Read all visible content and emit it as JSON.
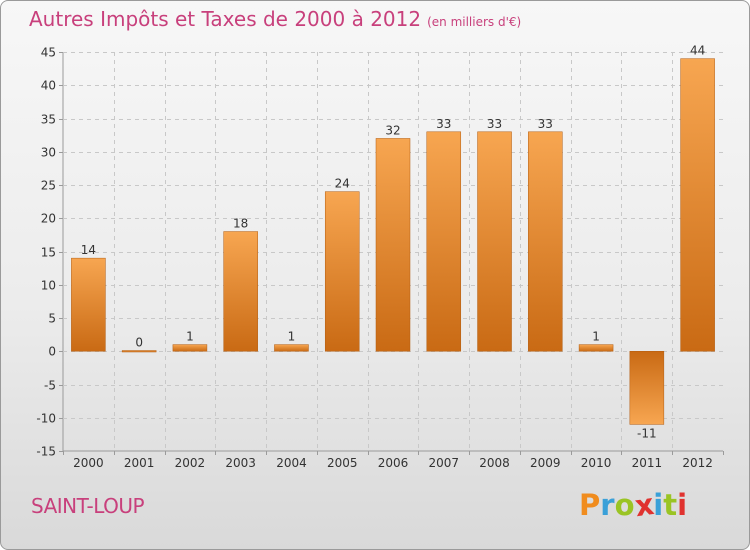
{
  "header": {
    "title": "Autres Impôts et Taxes de 2000 à 2012",
    "unit": "(en milliers d'€)"
  },
  "footer": {
    "commune": "SAINT-LOUP",
    "logo": {
      "letters": [
        "P",
        "r",
        "o",
        "x",
        "i",
        "t",
        "i"
      ],
      "colors": [
        "#f08c1e",
        "#3aa0d8",
        "#9ac424",
        "#e0322f",
        "#3aa0d8",
        "#9ac424",
        "#e0322f"
      ]
    }
  },
  "chart_data": {
    "type": "bar",
    "categories": [
      "2000",
      "2001",
      "2002",
      "2003",
      "2004",
      "2005",
      "2006",
      "2007",
      "2008",
      "2009",
      "2010",
      "2011",
      "2012"
    ],
    "values": [
      14,
      0,
      1,
      18,
      1,
      24,
      32,
      33,
      33,
      33,
      1,
      -11,
      44
    ],
    "value_labels": [
      "14",
      "0",
      "1",
      "18",
      "1",
      "24",
      "32",
      "33",
      "33",
      "33",
      "1",
      "-11",
      "44"
    ],
    "ylim": [
      -15,
      45
    ],
    "yticks": [
      -15,
      -10,
      -5,
      0,
      5,
      10,
      15,
      20,
      25,
      30,
      35,
      40,
      45
    ],
    "grid": true,
    "colors": {
      "bar_light": "#f7a651",
      "bar_dark": "#c96a14",
      "grid": "#c8c8c8",
      "axis": "#9a9a9a",
      "text": "#333333"
    }
  }
}
